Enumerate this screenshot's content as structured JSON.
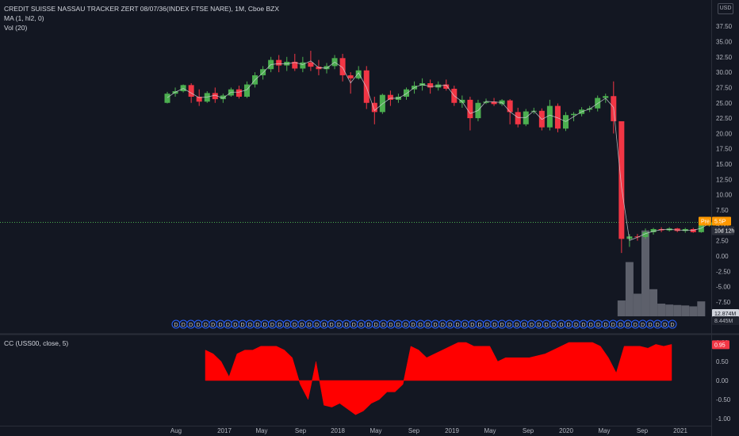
{
  "legend": {
    "title": "CREDIT SUISSE NASSAU TRACKER ZERT 08/07/36(INDEX FTSE NARE), 1M, Cboe BZX",
    "ma": "MA (1, hl2, 0)",
    "vol": "Vol (20)"
  },
  "currency": "USD",
  "price_tags": {
    "pre_label": "Pre",
    "pre_value": "5.5P",
    "countdown": "10d 12h",
    "vol_value_1": "12.874M",
    "vol_value_2": "8.445M",
    "cc_value": "0.95"
  },
  "cc_legend": "CC (USS00, close, 5)",
  "colors": {
    "background": "#131722",
    "up": "#4caf50",
    "down": "#f23645",
    "volume": "#5d606b",
    "cc_fill": "#ff0000",
    "axis_text": "#b2b5be",
    "pre_tag": "#ff9800",
    "dividend_badge": "#2962ff"
  },
  "chart_data": [
    {
      "type": "candlestick",
      "interval": "1M",
      "x_ticks": [
        "Aug",
        "2017",
        "May",
        "Sep",
        "2018",
        "May",
        "Sep",
        "2019",
        "May",
        "Sep",
        "2020",
        "May",
        "Sep",
        "2021"
      ],
      "y_ticks": [
        "37.50",
        "35.00",
        "32.50",
        "30.00",
        "27.50",
        "25.00",
        "22.50",
        "20.00",
        "17.50",
        "15.00",
        "12.50",
        "10.00",
        "7.50",
        "5.00",
        "2.50",
        "0.00",
        "-2.50",
        "-5.00",
        "-7.50"
      ],
      "ylim": [
        -9,
        40
      ],
      "series": [
        {
          "name": "Price",
          "ohlc": [
            [
              25.0,
              26.8,
              24.9,
              26.5
            ],
            [
              26.5,
              27.5,
              26.0,
              26.9
            ],
            [
              26.9,
              28.0,
              26.7,
              27.9
            ],
            [
              27.9,
              28.2,
              25.0,
              26.0
            ],
            [
              26.0,
              27.2,
              24.5,
              25.2
            ],
            [
              25.2,
              26.9,
              25.0,
              26.6
            ],
            [
              26.6,
              27.5,
              25.0,
              25.6
            ],
            [
              25.6,
              26.5,
              25.0,
              26.2
            ],
            [
              26.2,
              27.5,
              26.0,
              27.2
            ],
            [
              27.2,
              27.8,
              25.7,
              26.0
            ],
            [
              26.0,
              28.5,
              25.8,
              28.0
            ],
            [
              28.0,
              30.0,
              27.5,
              29.5
            ],
            [
              29.5,
              31.0,
              28.8,
              30.5
            ],
            [
              30.5,
              32.5,
              30.0,
              32.0
            ],
            [
              32.0,
              32.8,
              30.0,
              31.1
            ],
            [
              31.1,
              32.5,
              30.2,
              31.7
            ],
            [
              31.7,
              33.0,
              30.2,
              30.6
            ],
            [
              30.6,
              32.5,
              30.0,
              31.6
            ],
            [
              31.6,
              33.5,
              30.2,
              30.9
            ],
            [
              30.9,
              32.0,
              29.5,
              30.5
            ],
            [
              30.5,
              31.5,
              29.8,
              31.0
            ],
            [
              31.0,
              32.8,
              30.5,
              32.3
            ],
            [
              32.3,
              33.0,
              28.5,
              29.5
            ],
            [
              29.5,
              30.0,
              26.5,
              29.0
            ],
            [
              29.0,
              31.0,
              28.8,
              30.3
            ],
            [
              30.3,
              31.0,
              24.0,
              25.0
            ],
            [
              25.0,
              26.0,
              21.5,
              23.5
            ],
            [
              23.5,
              26.5,
              23.2,
              26.3
            ],
            [
              26.3,
              27.0,
              24.5,
              25.5
            ],
            [
              25.5,
              26.5,
              25.0,
              26.0
            ],
            [
              26.0,
              27.5,
              25.5,
              27.2
            ],
            [
              27.2,
              28.5,
              26.5,
              27.8
            ],
            [
              27.8,
              29.0,
              27.0,
              28.2
            ],
            [
              28.2,
              28.8,
              26.5,
              27.5
            ],
            [
              27.5,
              28.5,
              27.0,
              28.0
            ],
            [
              28.0,
              28.8,
              27.0,
              27.3
            ],
            [
              27.3,
              27.8,
              24.5,
              25.0
            ],
            [
              25.0,
              26.2,
              24.2,
              25.5
            ],
            [
              25.5,
              26.0,
              20.5,
              22.5
            ],
            [
              22.5,
              25.5,
              22.0,
              25.0
            ],
            [
              25.0,
              25.7,
              24.8,
              25.2
            ],
            [
              25.2,
              25.8,
              24.5,
              24.8
            ],
            [
              24.8,
              25.6,
              24.5,
              25.4
            ],
            [
              25.4,
              25.6,
              21.5,
              23.5
            ],
            [
              23.5,
              24.2,
              21.0,
              21.5
            ],
            [
              21.5,
              24.0,
              21.2,
              23.6
            ],
            [
              23.6,
              24.2,
              23.2,
              23.7
            ],
            [
              23.7,
              24.1,
              20.5,
              21.0
            ],
            [
              21.0,
              25.5,
              20.5,
              24.5
            ],
            [
              24.5,
              24.9,
              20.2,
              20.8
            ],
            [
              20.8,
              23.5,
              20.4,
              23.0
            ],
            [
              23.0,
              23.5,
              22.0,
              23.2
            ],
            [
              23.2,
              24.3,
              22.8,
              23.9
            ],
            [
              23.9,
              24.5,
              23.5,
              24.1
            ],
            [
              24.1,
              26.2,
              23.6,
              25.8
            ],
            [
              25.8,
              26.5,
              25.0,
              26.1
            ],
            [
              26.1,
              28.5,
              20.0,
              22.0
            ],
            [
              22.0,
              22.0,
              0.5,
              2.8
            ],
            [
              2.8,
              3.6,
              1.5,
              3.2
            ],
            [
              3.2,
              3.6,
              2.5,
              3.1
            ],
            [
              3.1,
              4.5,
              2.8,
              3.9
            ],
            [
              3.9,
              4.6,
              3.5,
              4.4
            ],
            [
              4.4,
              4.7,
              3.9,
              4.2
            ],
            [
              4.2,
              4.7,
              4.0,
              4.5
            ],
            [
              4.5,
              4.6,
              3.9,
              4.1
            ],
            [
              4.1,
              4.6,
              3.8,
              4.4
            ],
            [
              4.4,
              4.6,
              3.8,
              3.9
            ],
            [
              3.9,
              5.3,
              3.8,
              5.0
            ],
            [
              5.0,
              5.8,
              4.8,
              5.5
            ]
          ]
        },
        {
          "name": "Vol",
          "values": [
            0,
            0,
            0,
            0,
            0,
            0,
            0,
            0,
            0,
            0,
            0,
            0,
            0,
            0,
            0,
            0,
            0,
            0,
            0,
            0,
            0,
            0,
            0,
            0,
            0,
            0,
            0,
            0,
            0,
            0,
            0,
            0,
            0,
            0,
            0,
            0,
            0,
            0,
            0,
            0,
            0,
            0,
            0,
            0,
            0,
            0,
            0,
            0,
            0,
            0,
            0,
            0,
            0,
            0,
            0,
            0,
            0,
            3.5,
            12.0,
            5.0,
            19.0,
            6.0,
            2.8,
            2.6,
            2.5,
            2.4,
            2.2,
            3.3,
            0
          ]
        }
      ],
      "dividend_marker": "D",
      "dividend_count": 68
    },
    {
      "type": "area",
      "y_ticks": [
        "1.00",
        "0.50",
        "0.00",
        "-0.50",
        "-1.00"
      ],
      "ylim": [
        -1.1,
        1.1
      ],
      "values": [
        0.8,
        0.7,
        0.5,
        0.1,
        0.7,
        0.8,
        0.8,
        0.9,
        0.9,
        0.9,
        0.8,
        0.6,
        -0.1,
        -0.5,
        0.5,
        -0.65,
        -0.7,
        -0.6,
        -0.75,
        -0.9,
        -0.8,
        -0.6,
        -0.5,
        -0.3,
        -0.3,
        -0.1,
        0.9,
        0.8,
        0.6,
        0.7,
        0.8,
        0.9,
        1.0,
        1.0,
        0.9,
        0.9,
        0.9,
        0.5,
        0.6,
        0.6,
        0.6,
        0.6,
        0.65,
        0.7,
        0.8,
        0.9,
        1.0,
        1.0,
        1.0,
        1.0,
        0.9,
        0.6,
        0.2,
        0.9,
        0.9,
        0.9,
        0.85,
        0.95,
        0.9,
        0.95
      ]
    }
  ]
}
